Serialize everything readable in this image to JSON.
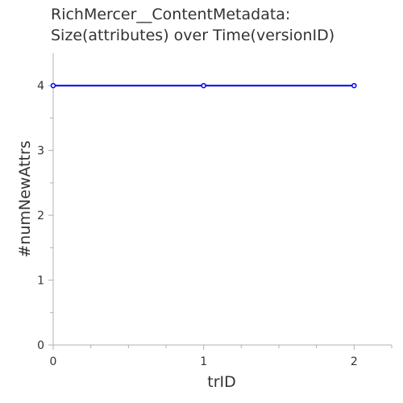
{
  "chart_data": {
    "type": "line",
    "title_lines": [
      "RichMercer__ContentMetadata:",
      "Size(attributes) over Time(versionID)"
    ],
    "xlabel": "trID",
    "ylabel": "#numNewAttrs",
    "xlim": [
      0,
      2.25
    ],
    "ylim": [
      0,
      4.5
    ],
    "x_ticks": [
      0,
      1,
      2
    ],
    "y_ticks": [
      0,
      1,
      2,
      3,
      4
    ],
    "grid": false,
    "series": [
      {
        "x": [
          0,
          1,
          2
        ],
        "values": [
          4,
          4,
          4
        ],
        "color": "#0000ee"
      }
    ]
  }
}
